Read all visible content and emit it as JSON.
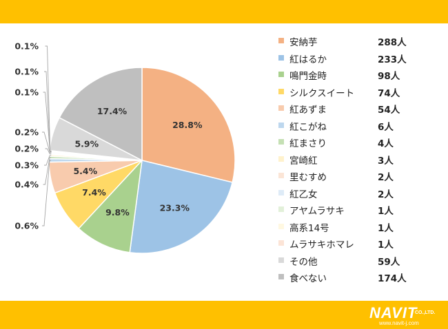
{
  "chart_data": {
    "type": "pie",
    "categories": [
      "安納芋",
      "紅はるか",
      "鳴門金時",
      "シルクスイート",
      "紅あずま",
      "紅こがね",
      "紅まさり",
      "宮崎紅",
      "里むすめ",
      "紅乙女",
      "アヤムラサキ",
      "高系14号",
      "ムラサキホマレ",
      "その他",
      "食べない"
    ],
    "counts": [
      "288人",
      "233人",
      "98人",
      "74人",
      "54人",
      "6人",
      "4人",
      "3人",
      "2人",
      "2人",
      "1人",
      "1人",
      "1人",
      "59人",
      "174人"
    ],
    "values": [
      288,
      233,
      98,
      74,
      54,
      6,
      4,
      3,
      2,
      2,
      1,
      1,
      1,
      59,
      174
    ],
    "percent_labels": [
      "28.8%",
      "23.3%",
      "9.8%",
      "7.4%",
      "5.4%",
      "0.6%",
      "0.4%",
      "0.3%",
      "0.2%",
      "0.2%",
      "0.1%",
      "0.1%",
      "0.1%",
      "5.9%",
      "17.4%"
    ],
    "colors": [
      "#f4b183",
      "#9dc3e6",
      "#a9d18e",
      "#ffd966",
      "#f8cbad",
      "#bdd7ee",
      "#c5e0b4",
      "#fff2cc",
      "#fbe5d6",
      "#deebf7",
      "#e2f0d9",
      "#fff8e1",
      "#fce4d6",
      "#d9d9d9",
      "#bfbfbf"
    ],
    "legend_position": "right"
  },
  "logo": {
    "name": "NAVIT",
    "suffix": "CO.,LTD.",
    "url": "www.navit-j.com"
  }
}
